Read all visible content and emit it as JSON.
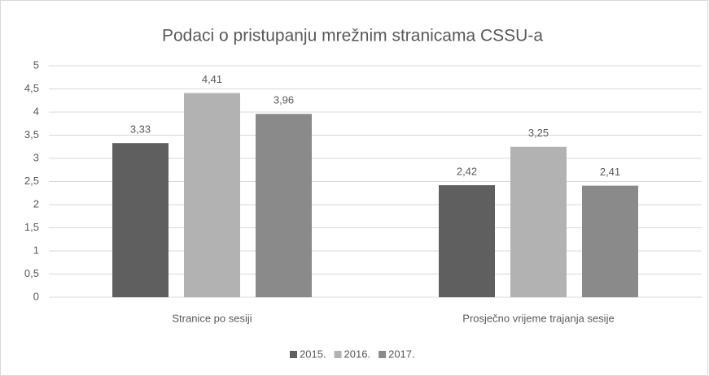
{
  "chart_data": {
    "type": "bar",
    "title": "Podaci o pristupanju mrežnim stranicama CSSU-a",
    "categories": [
      "Stranice po sesiji",
      "Prosječno vrijeme trajanja sesije"
    ],
    "series": [
      {
        "name": "2015.",
        "color": "#5f5f5f",
        "values": [
          3.33,
          2.42
        ],
        "value_labels": [
          "3,33",
          "2,42"
        ]
      },
      {
        "name": "2016.",
        "color": "#b2b2b2",
        "values": [
          4.41,
          3.25
        ],
        "value_labels": [
          "4,41",
          "3,25"
        ]
      },
      {
        "name": "2017.",
        "color": "#8a8a8a",
        "values": [
          3.96,
          2.41
        ],
        "value_labels": [
          "3,96",
          "2,41"
        ]
      }
    ],
    "ylim": [
      0,
      5
    ],
    "yticks": [
      0,
      {
        "value": 0.5,
        "label": "0,5"
      },
      1,
      {
        "value": 1.5,
        "label": "1,5"
      },
      2,
      {
        "value": 2.5,
        "label": "2,5"
      },
      3,
      {
        "value": 3.5,
        "label": "3,5"
      },
      4,
      {
        "value": 4.5,
        "label": "4,5"
      },
      5
    ],
    "grid": true,
    "legend": "bottom"
  }
}
